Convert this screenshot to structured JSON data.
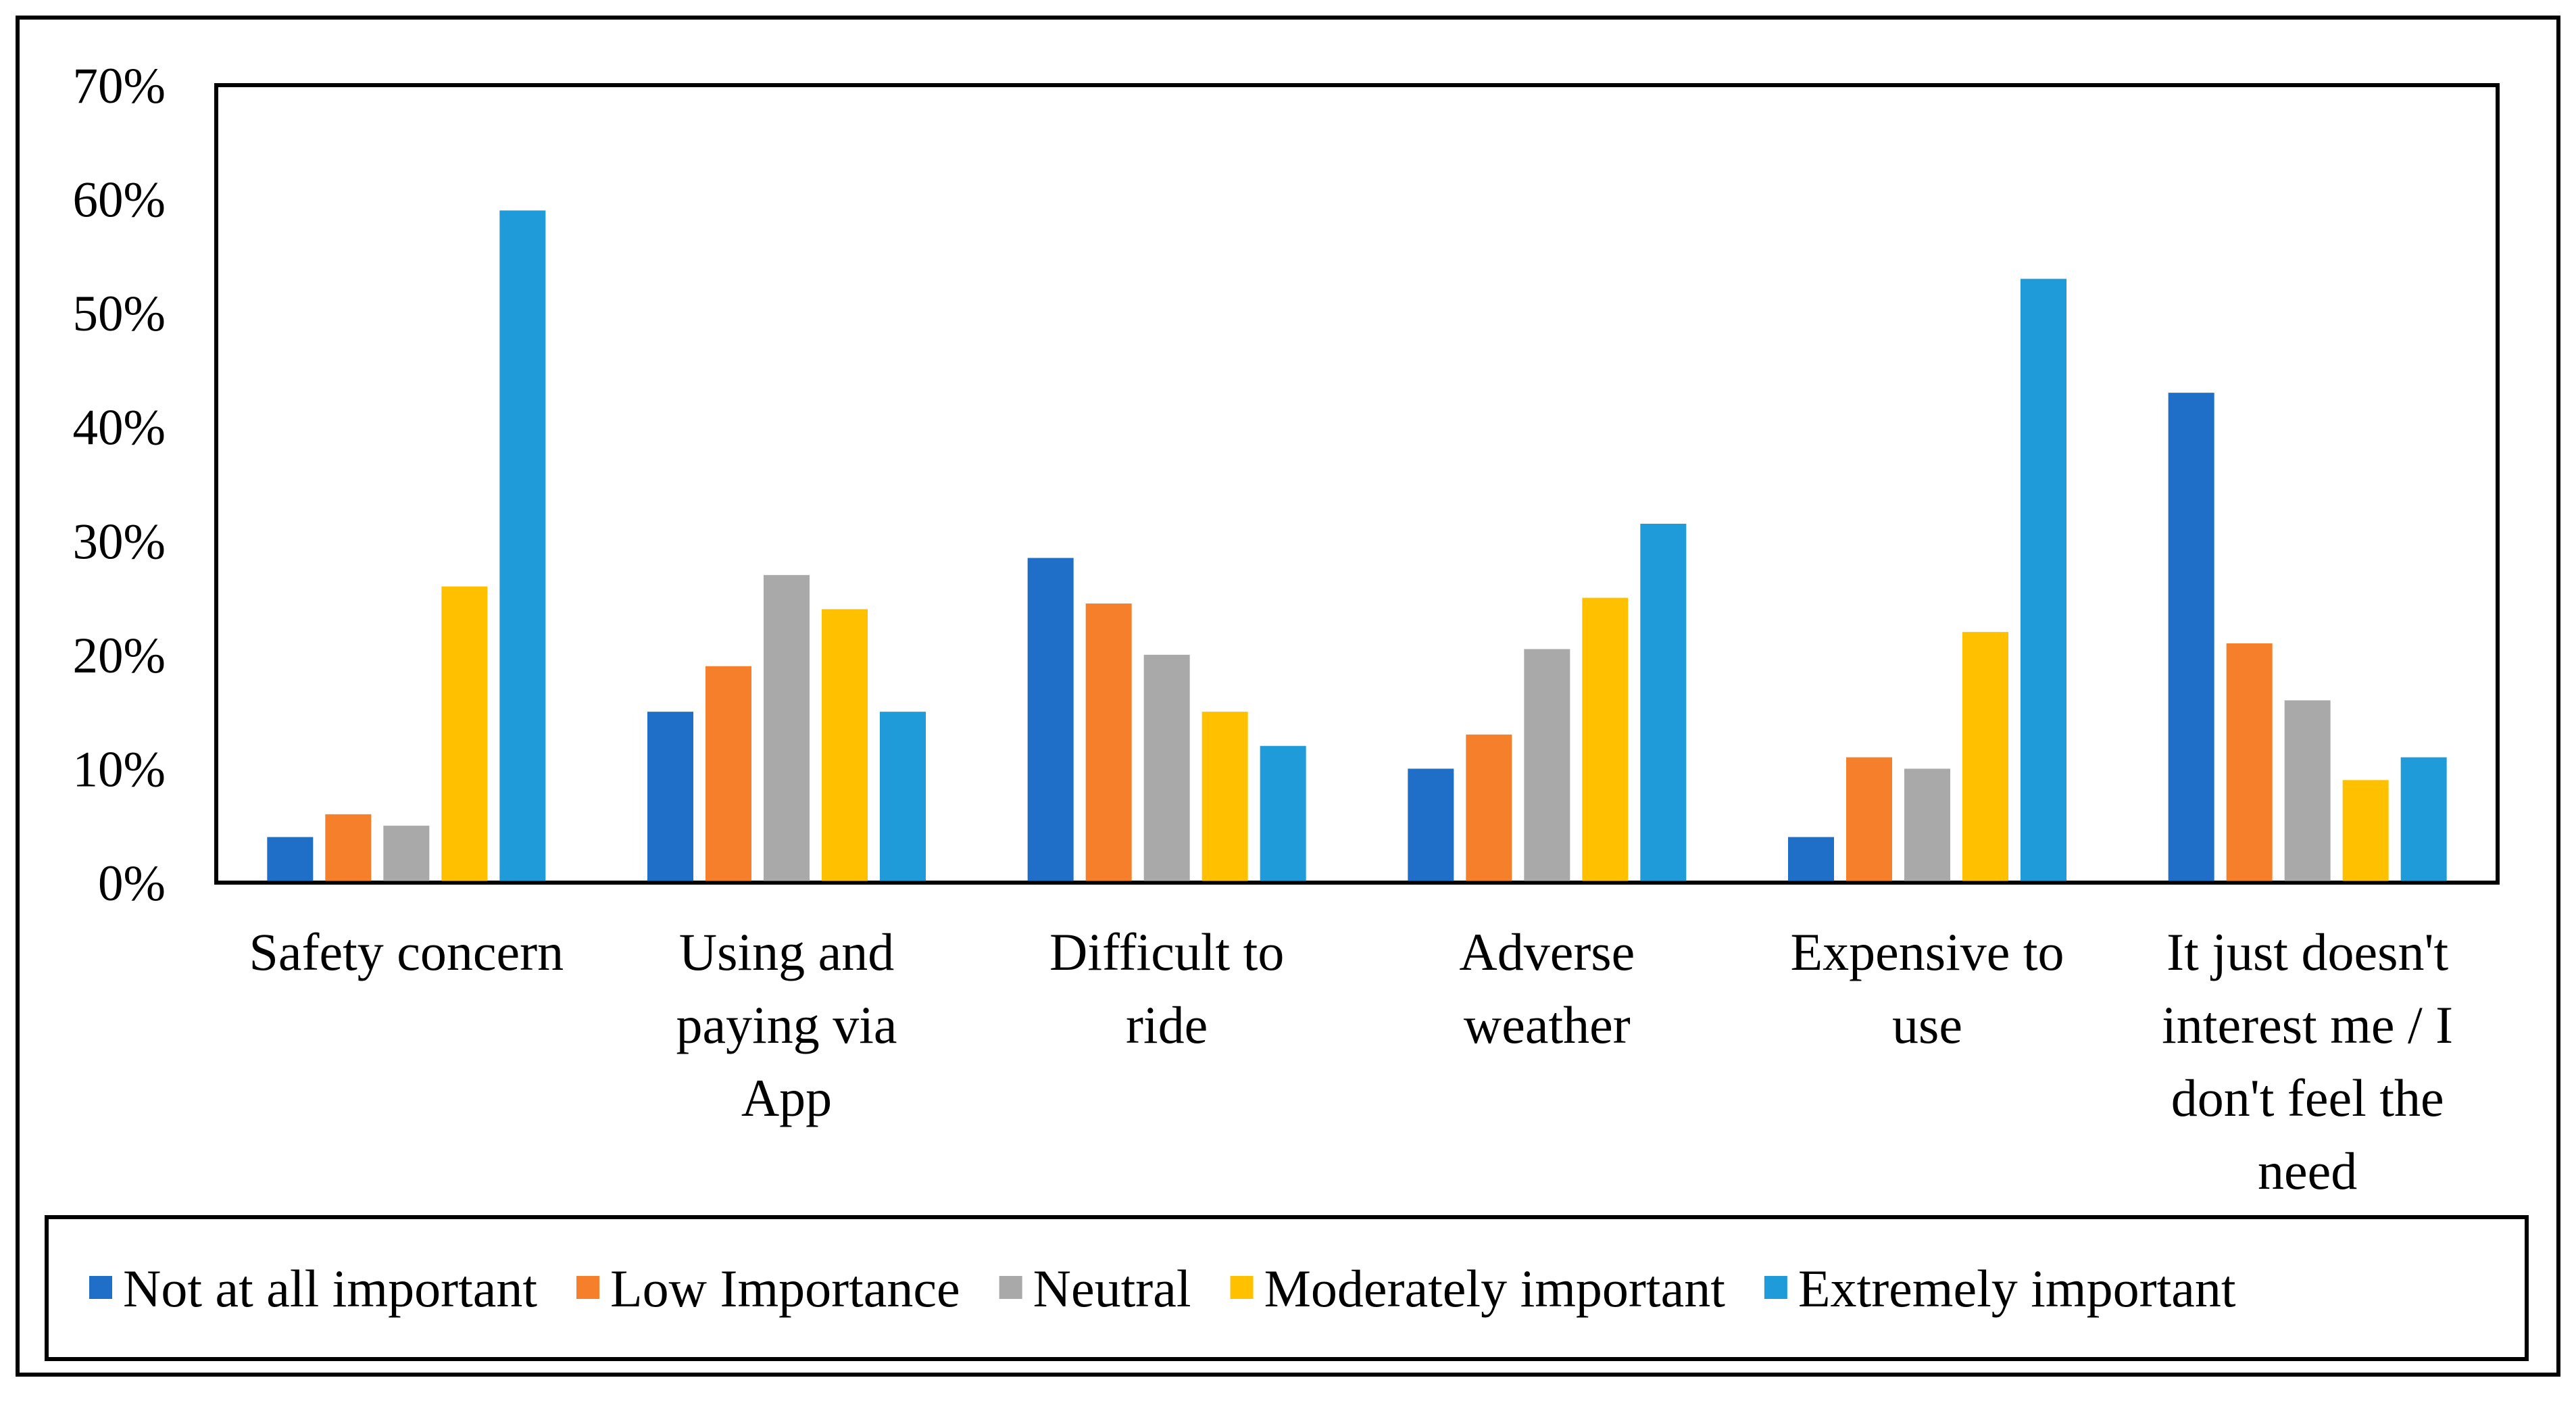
{
  "chart_data": {
    "type": "bar",
    "title": "",
    "xlabel": "",
    "ylabel": "",
    "ylim": [
      0,
      70
    ],
    "y_ticks": [
      "0%",
      "10%",
      "20%",
      "30%",
      "40%",
      "50%",
      "60%",
      "70%"
    ],
    "grid": false,
    "legend_position": "bottom",
    "categories": [
      [
        "Safety concern"
      ],
      [
        "Using and",
        "paying via",
        "App"
      ],
      [
        "Difficult to",
        "ride"
      ],
      [
        "Adverse",
        "weather"
      ],
      [
        "Expensive to",
        "use"
      ],
      [
        "It just doesn't",
        "interest me / I",
        "don't feel the",
        "need"
      ]
    ],
    "series": [
      {
        "name": "Not at all important",
        "color": "#1f6fc9",
        "values": [
          4,
          15,
          28.5,
          10,
          4,
          43
        ]
      },
      {
        "name": "Low Importance",
        "color": "#f57f2a",
        "values": [
          6,
          19,
          24.5,
          13,
          11,
          21
        ]
      },
      {
        "name": "Neutral",
        "color": "#a9a9a9",
        "values": [
          5,
          27,
          20,
          20.5,
          10,
          16
        ]
      },
      {
        "name": "Moderately important",
        "color": "#ffc000",
        "values": [
          26,
          24,
          15,
          25,
          22,
          9
        ]
      },
      {
        "name": "Extremely important",
        "color": "#1e9bd8",
        "values": [
          59,
          15,
          12,
          31.5,
          53,
          11
        ]
      }
    ]
  }
}
